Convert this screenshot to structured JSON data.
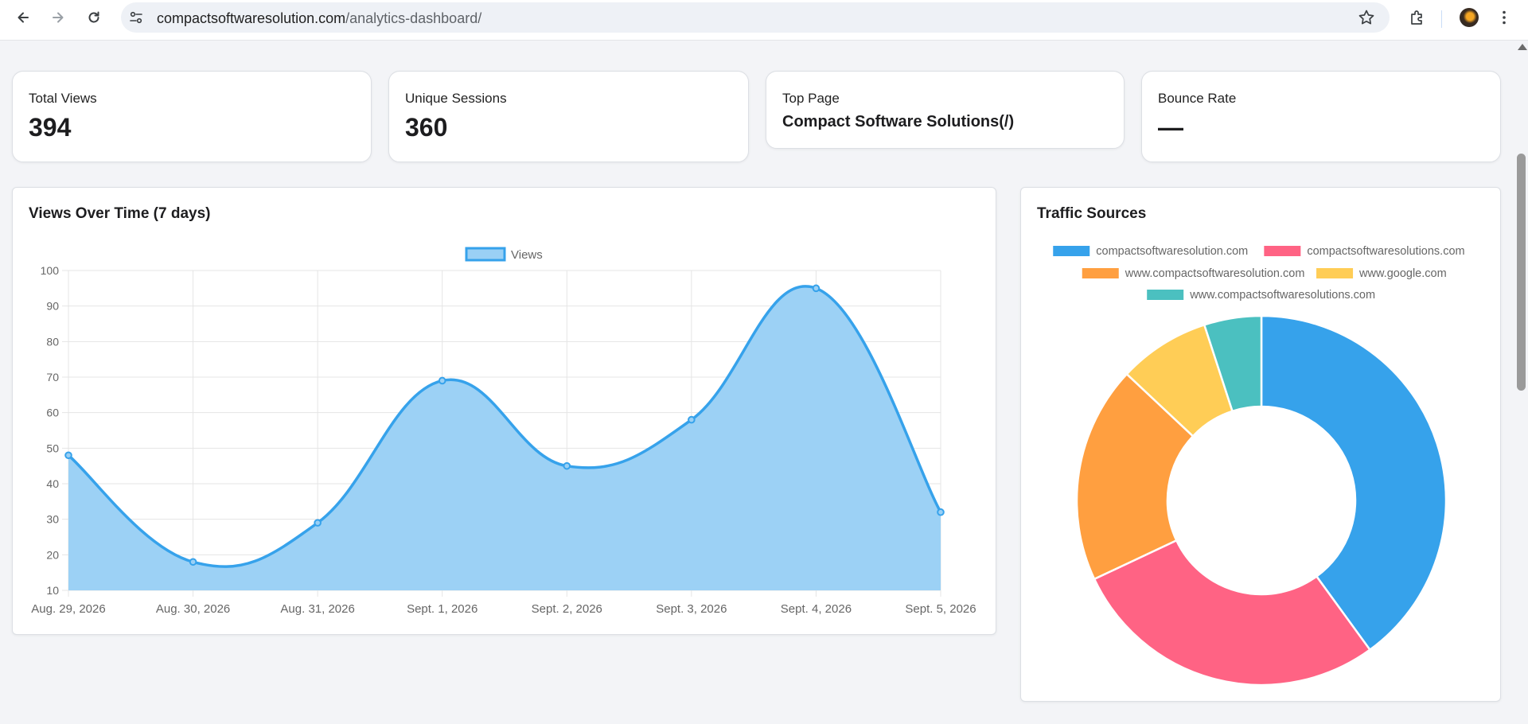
{
  "browser": {
    "url_domain": "compactsoftwaresolution.com",
    "url_path": "/analytics-dashboard/"
  },
  "stats": {
    "total_views": {
      "label": "Total Views",
      "value": "394"
    },
    "unique_sessions": {
      "label": "Unique Sessions",
      "value": "360"
    },
    "top_page": {
      "label": "Top Page",
      "value": "Compact Software Solutions(/)"
    },
    "bounce_rate": {
      "label": "Bounce Rate",
      "value": "—"
    }
  },
  "views_panel": {
    "title": "Views Over Time (7 days)"
  },
  "traffic_panel": {
    "title": "Traffic Sources"
  },
  "chart_data": [
    {
      "type": "area",
      "title": "Views Over Time (7 days)",
      "legend": [
        "Views"
      ],
      "x": [
        "Aug. 29, 2026",
        "Aug. 30, 2026",
        "Aug. 31, 2026",
        "Sept. 1, 2026",
        "Sept. 2, 2026",
        "Sept. 3, 2026",
        "Sept. 4, 2026",
        "Sept. 5, 2026"
      ],
      "series": [
        {
          "name": "Views",
          "values": [
            48,
            18,
            29,
            69,
            45,
            58,
            95,
            32
          ]
        }
      ],
      "ylim": [
        10,
        100
      ],
      "yticks": [
        10,
        20,
        30,
        40,
        50,
        60,
        70,
        80,
        90,
        100
      ],
      "grid": true,
      "legend_position": "top",
      "colors": {
        "line": "#36a2eb",
        "fill": "#9ad0f5"
      }
    },
    {
      "type": "pie",
      "variant": "doughnut",
      "title": "Traffic Sources",
      "legend_position": "top",
      "labels": [
        "compactsoftwaresolution.com",
        "compactsoftwaresolutions.com",
        "www.compactsoftwaresolution.com",
        "www.google.com",
        "www.compactsoftwaresolutions.com"
      ],
      "values": [
        40,
        28,
        19,
        8,
        5
      ],
      "colors": [
        "#36a2eb",
        "#ff6384",
        "#ff9f40",
        "#ffcd56",
        "#4bc0c0"
      ]
    }
  ]
}
